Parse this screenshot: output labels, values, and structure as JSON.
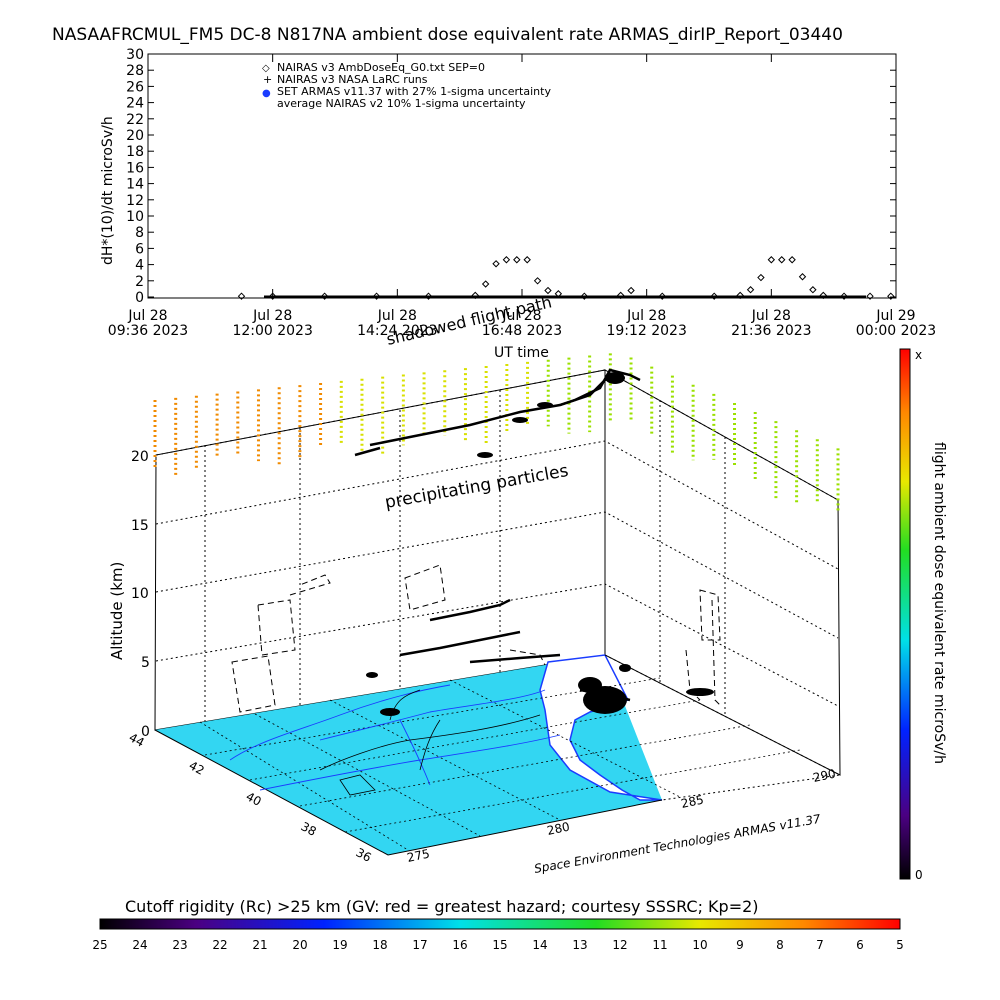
{
  "header": {
    "title": "NASAAFRCMUL_FM5 DC-8   N817NA ambient dose equivalent rate ARMAS_dirIP_Report_03440"
  },
  "colors": {
    "ocean": "#33d6f2",
    "coast": "#1a3cff",
    "precip_yellow": "#d8e000",
    "precip_orange": "#f08a00",
    "precip_green": "#9ae000"
  },
  "chart_data": [
    {
      "type": "scatter",
      "title": "NASAAFRCMUL_FM5 DC-8   N817NA ambient dose equivalent rate ARMAS_dirIP_Report_03440",
      "ylabel": "dH*(10)/dt microSv/h",
      "xlabel": "UT time",
      "ylim": [
        0,
        30
      ],
      "yticks": [
        0,
        2,
        4,
        6,
        8,
        10,
        12,
        14,
        16,
        18,
        20,
        22,
        24,
        26,
        28,
        30
      ],
      "x_ticks": [
        {
          "line1": "Jul 28",
          "line2": "09:36 2023"
        },
        {
          "line1": "Jul 28",
          "line2": "12:00 2023"
        },
        {
          "line1": "Jul 28",
          "line2": "14:24 2023"
        },
        {
          "line1": "Jul 28",
          "line2": "16:48 2023"
        },
        {
          "line1": "Jul 28",
          "line2": "19:12 2023"
        },
        {
          "line1": "Jul 28",
          "line2": "21:36 2023"
        },
        {
          "line1": "Jul 29",
          "line2": "00:00 2023"
        }
      ],
      "x_range_hours": [
        9.6,
        24.0
      ],
      "legend": [
        {
          "symbol": "◇",
          "text": "NAIRAS v3 AmbDoseEq_G0.txt SEP=0"
        },
        {
          "symbol": "+",
          "text": "NAIRAS v3 NASA LaRC runs"
        },
        {
          "symbol": "●",
          "text": "SET ARMAS v11.37 with 27% 1-sigma uncertainty"
        },
        {
          "symbol": "",
          "text": "average NAIRAS v2 10% 1-sigma uncertainty"
        }
      ],
      "legend_position": "top-left",
      "series": [
        {
          "name": "NAIRAS v3 AmbDoseEq_G0.txt SEP=0",
          "x": [
            11.4,
            12.0,
            13.0,
            14.0,
            15.0,
            15.9,
            16.1,
            16.3,
            16.5,
            16.7,
            16.9,
            17.1,
            17.3,
            17.5,
            18.0,
            18.7,
            18.9,
            19.5,
            20.5,
            21.0,
            21.2,
            21.4,
            21.6,
            21.8,
            22.0,
            22.2,
            22.4,
            22.6,
            23.0,
            23.5,
            23.9
          ],
          "y": [
            0.1,
            0.1,
            0.1,
            0.1,
            0.1,
            0.2,
            1.6,
            4.1,
            4.6,
            4.6,
            4.6,
            2.0,
            0.8,
            0.4,
            0.1,
            0.2,
            0.8,
            0.1,
            0.1,
            0.2,
            0.9,
            2.4,
            4.6,
            4.6,
            4.6,
            2.5,
            0.9,
            0.2,
            0.1,
            0.1,
            0.1
          ]
        }
      ]
    },
    {
      "type": "scatter",
      "ylabel": "Altitude (km)",
      "zticks": [
        "0",
        "5",
        "10",
        "15",
        "20"
      ],
      "lat_ticks": [
        "44",
        "42",
        "40",
        "38",
        "36"
      ],
      "lon_ticks": [
        "275",
        "280",
        "285",
        "290"
      ],
      "annotations": [
        "shadowed flight path",
        "precipitating particles"
      ],
      "credit": "Space Environment Technologies ARMAS v11.37",
      "colorbar": {
        "label": "flight ambient dose equivalent rate microSv/h",
        "top_label": "x",
        "bottom_label": "0"
      }
    },
    {
      "type": "heatmap",
      "title": "Cutoff rigidity (Rc) >25 km (GV: red = greatest hazard; courtesy SSSRC; Kp=2)",
      "ticks": [
        "25",
        "24",
        "23",
        "22",
        "21",
        "20",
        "19",
        "18",
        "17",
        "16",
        "15",
        "14",
        "13",
        "12",
        "11",
        "10",
        "9",
        "8",
        "7",
        "6",
        "5"
      ]
    }
  ]
}
